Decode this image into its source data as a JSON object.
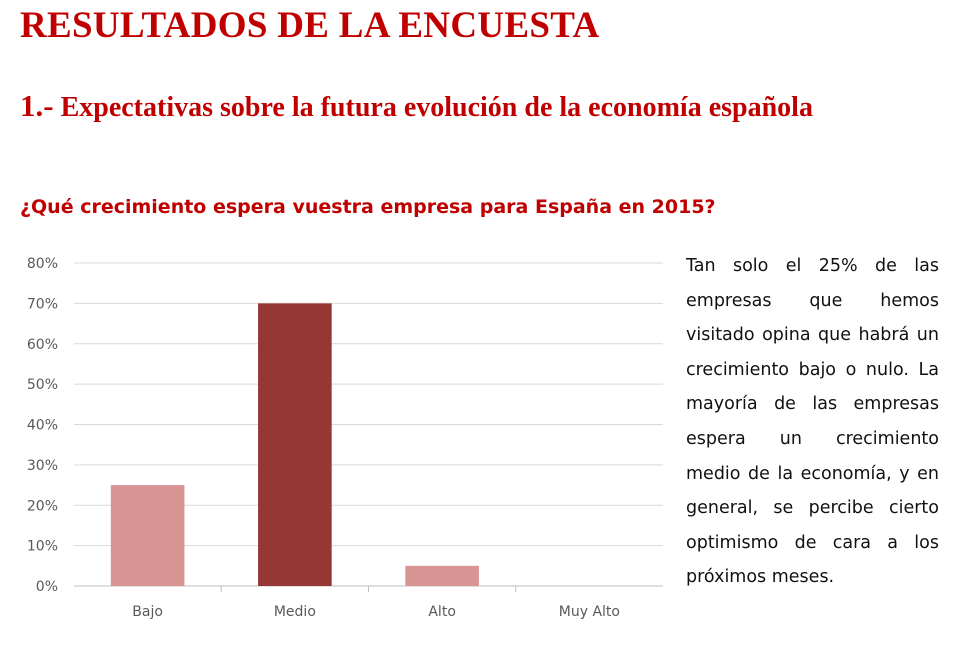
{
  "page": {
    "title": "RESULTADOS DE LA ENCUESTA",
    "section_number": "1.-",
    "section_title": "Expectativas sobre la futura evolución de la economía española",
    "question": "¿Qué crecimiento espera vuestra empresa para España en 2015?",
    "note": "Tan solo el 25% de las empresas que hemos visitado opina que habrá un crecimiento bajo o nulo. La mayoría de las empresas espera un crecimiento medio de la economía, y en general, se percibe cierto optimismo de cara a los próximos meses."
  },
  "colors": {
    "title": "#c00000",
    "bar_light": "#d99594",
    "bar_dark": "#953735",
    "gridline": "#d9d9d9",
    "tick_text": "#595959"
  },
  "chart_data": {
    "type": "bar",
    "title": "¿Qué crecimiento espera vuestra empresa para España en 2015?",
    "xlabel": "",
    "ylabel": "",
    "categories": [
      "Bajo",
      "Medio",
      "Alto",
      "Muy Alto"
    ],
    "values": [
      25,
      70,
      5,
      0
    ],
    "value_unit": "%",
    "bar_colors": [
      "#d99594",
      "#953735",
      "#d99594",
      "#d99594"
    ],
    "ylim": [
      0,
      80
    ],
    "yticks": [
      0,
      10,
      20,
      30,
      40,
      50,
      60,
      70,
      80
    ],
    "ytick_labels": [
      "0%",
      "10%",
      "20%",
      "30%",
      "40%",
      "50%",
      "60%",
      "70%",
      "80%"
    ],
    "grid": true,
    "legend": "none"
  }
}
